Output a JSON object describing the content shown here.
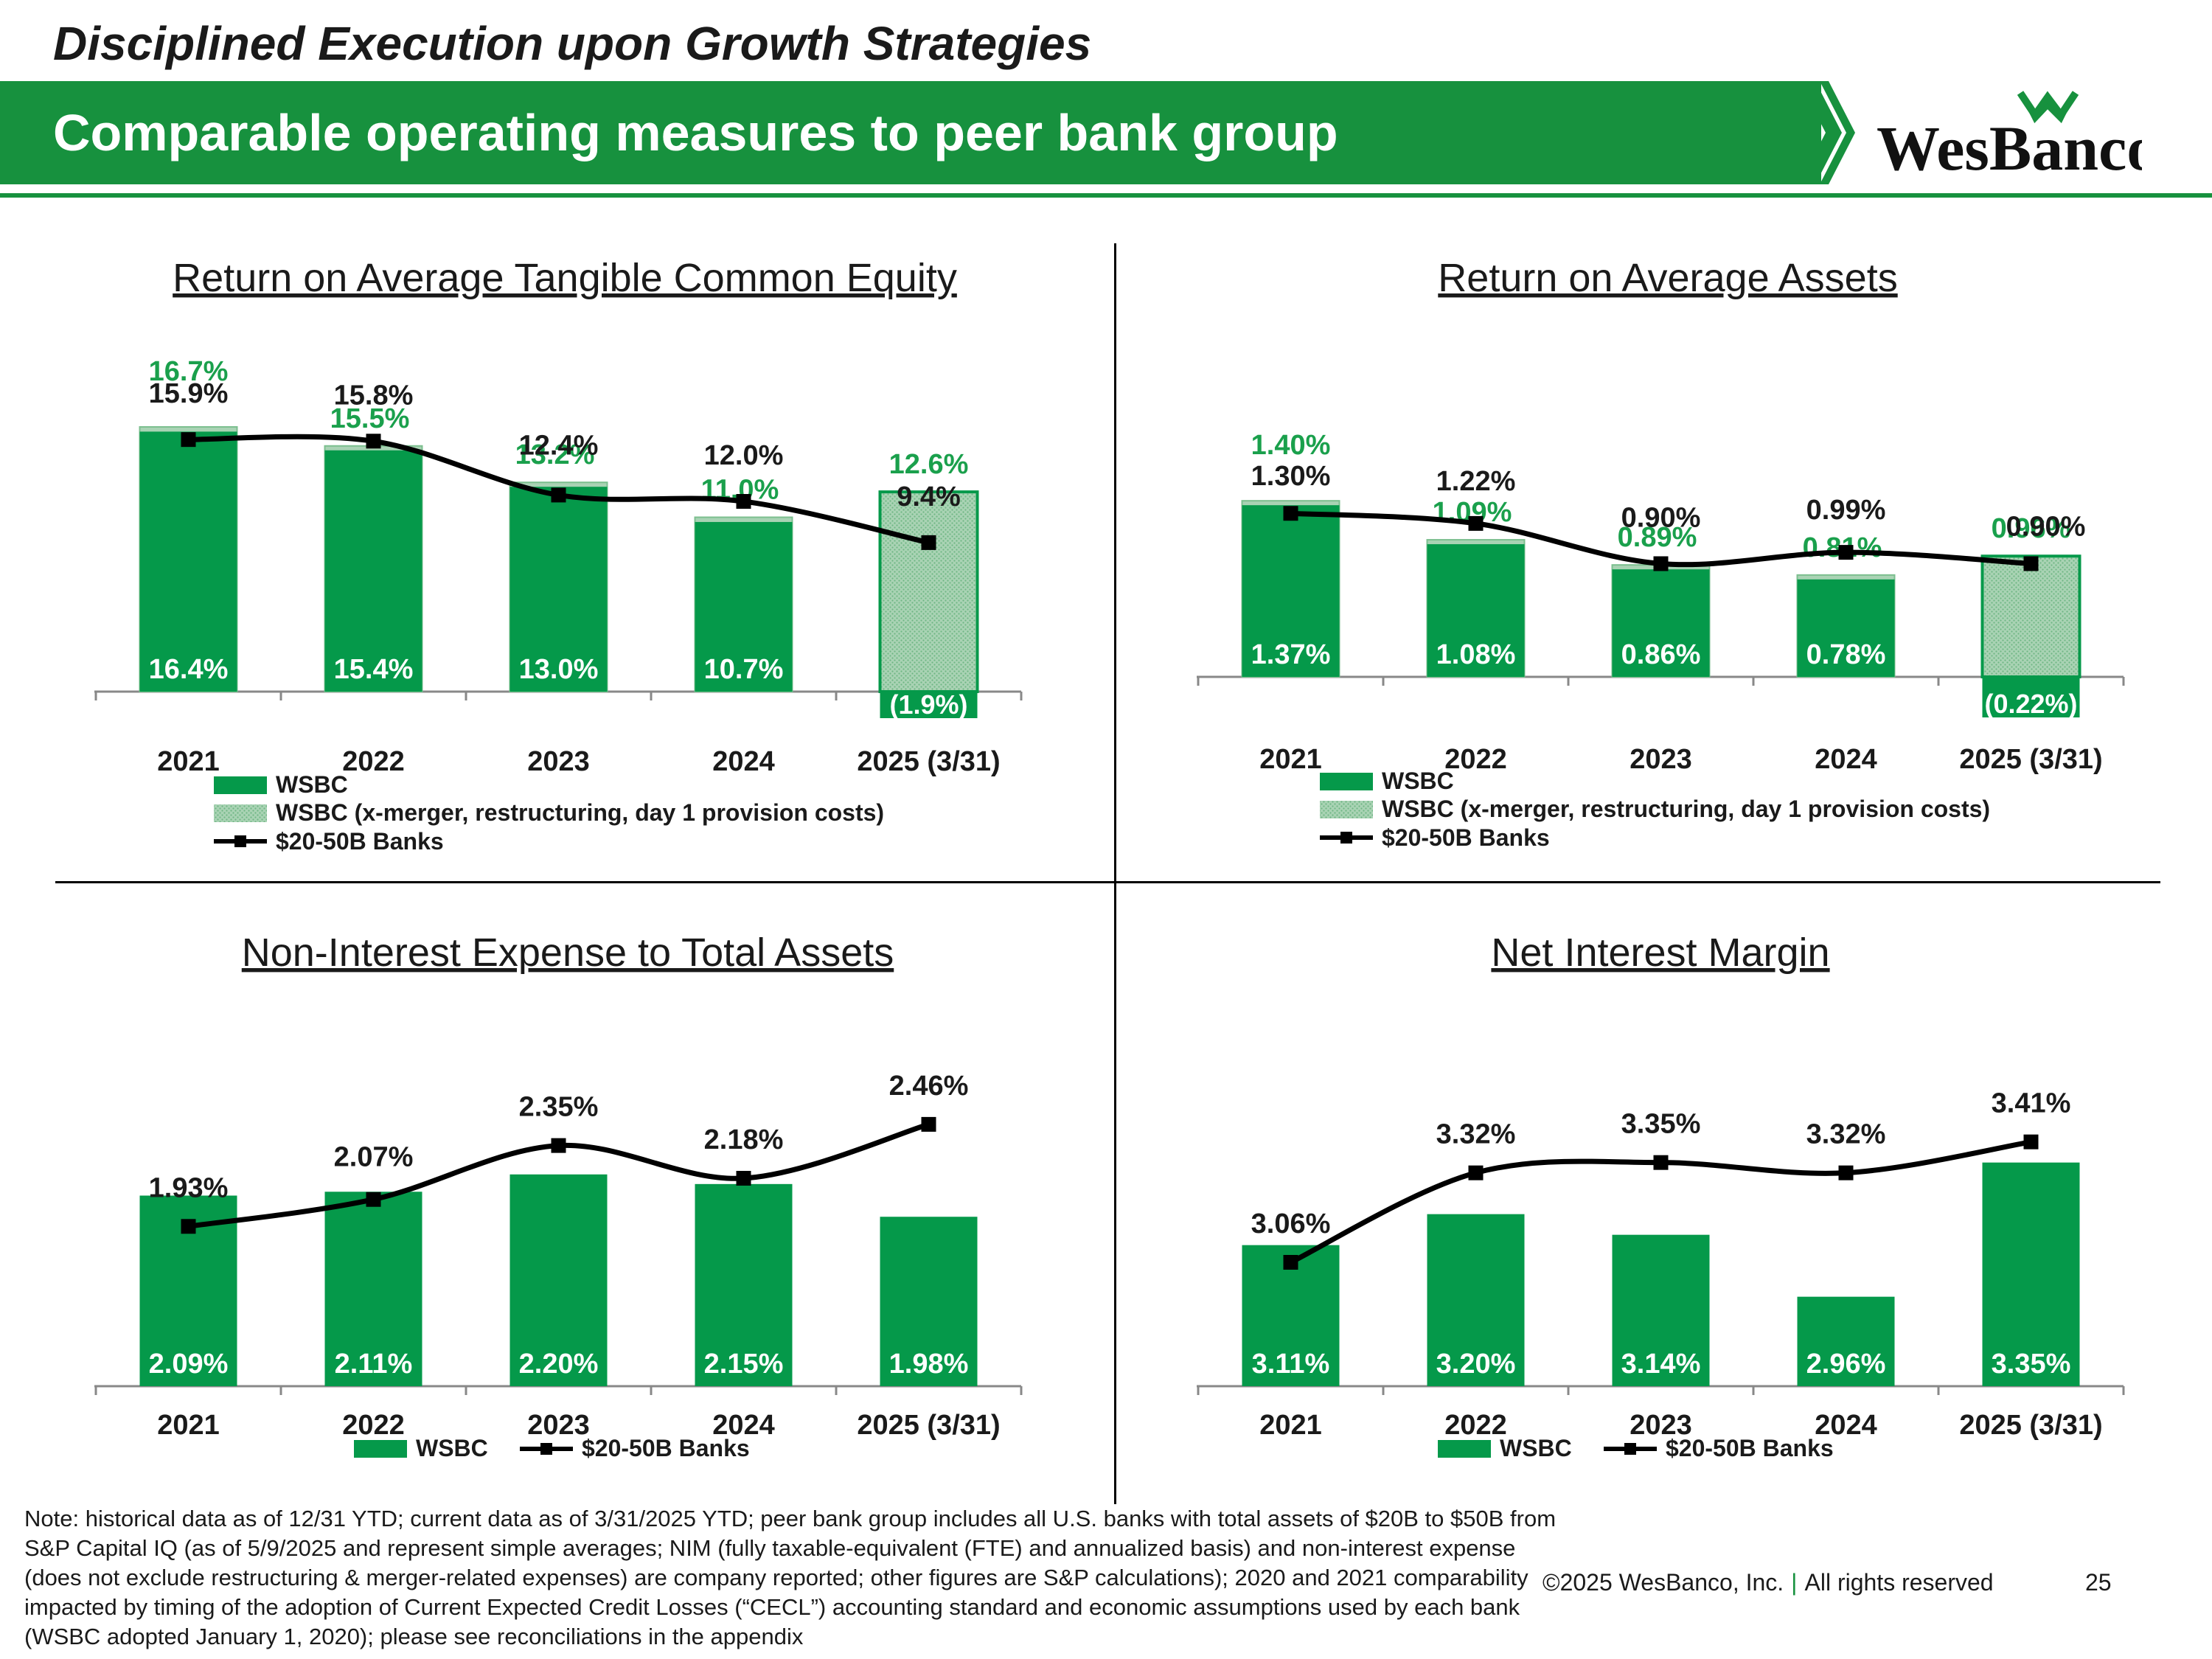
{
  "header": {
    "supertitle": "Disciplined Execution upon Growth Strategies",
    "title": "Comparable operating measures to peer bank group",
    "logo_text": "WesBanco"
  },
  "colors": {
    "green": "#17913e",
    "bar_green": "#05994a",
    "label_green": "#1aa04c",
    "line": "#000000"
  },
  "chart_data": [
    {
      "id": "rotce",
      "type": "bar",
      "title": "Return on Average Tangible Common Equity",
      "categories": [
        "2021",
        "2022",
        "2023",
        "2024",
        "2025 (3/31)"
      ],
      "series": [
        {
          "name": "WSBC",
          "kind": "bar",
          "values": [
            16.4,
            15.4,
            13.0,
            10.7,
            -1.9
          ],
          "labels": [
            "16.4%",
            "15.4%",
            "13.0%",
            "10.7%",
            "(1.9%)"
          ]
        },
        {
          "name": "WSBC (x-merger, restructuring, day 1 provision costs)",
          "kind": "bar-adjusted",
          "values": [
            16.7,
            15.5,
            13.2,
            11.0,
            12.6
          ],
          "labels": [
            "16.7%",
            "15.5%",
            "13.2%",
            "11.0%",
            "12.6%"
          ]
        },
        {
          "name": "$20-50B Banks",
          "kind": "line",
          "values": [
            15.9,
            15.8,
            12.4,
            12.0,
            9.4
          ],
          "labels": [
            "15.9%",
            "15.8%",
            "12.4%",
            "12.0%",
            "9.4%"
          ]
        }
      ],
      "ylim": [
        -2.5,
        20
      ]
    },
    {
      "id": "roaa",
      "type": "bar",
      "title": "Return on Average Assets",
      "categories": [
        "2021",
        "2022",
        "2023",
        "2024",
        "2025 (3/31)"
      ],
      "series": [
        {
          "name": "WSBC",
          "kind": "bar",
          "values": [
            1.37,
            1.08,
            0.86,
            0.78,
            -0.22
          ],
          "labels": [
            "1.37%",
            "1.08%",
            "0.86%",
            "0.78%",
            "(0.22%)"
          ]
        },
        {
          "name": "WSBC (x-merger, restructuring, day 1 provision costs)",
          "kind": "bar-adjusted",
          "values": [
            1.4,
            1.09,
            0.89,
            0.81,
            0.96
          ],
          "labels": [
            "1.40%",
            "1.09%",
            "0.89%",
            "0.81%",
            "0.96%"
          ]
        },
        {
          "name": "$20-50B Banks",
          "kind": "line",
          "values": [
            1.3,
            1.22,
            0.9,
            0.99,
            0.9
          ],
          "labels": [
            "1.30%",
            "1.22%",
            "0.90%",
            "0.99%",
            "0.90%"
          ]
        }
      ],
      "ylim": [
        -0.25,
        1.7
      ]
    },
    {
      "id": "nie",
      "type": "bar",
      "title": "Non-Interest Expense to Total Assets",
      "categories": [
        "2021",
        "2022",
        "2023",
        "2024",
        "2025 (3/31)"
      ],
      "series": [
        {
          "name": "WSBC",
          "kind": "bar",
          "values": [
            2.09,
            2.11,
            2.2,
            2.15,
            1.98
          ],
          "labels": [
            "2.09%",
            "2.11%",
            "2.20%",
            "2.15%",
            "1.98%"
          ]
        },
        {
          "name": "$20-50B Banks",
          "kind": "line",
          "values": [
            1.93,
            2.07,
            2.35,
            2.18,
            2.46
          ],
          "labels": [
            "1.93%",
            "2.07%",
            "2.35%",
            "2.18%",
            "2.46%"
          ]
        }
      ],
      "ylim": [
        1.1,
        2.9
      ]
    },
    {
      "id": "nim",
      "type": "bar",
      "title": "Net Interest Margin",
      "categories": [
        "2021",
        "2022",
        "2023",
        "2024",
        "2025 (3/31)"
      ],
      "series": [
        {
          "name": "WSBC",
          "kind": "bar",
          "values": [
            3.11,
            3.2,
            3.14,
            2.96,
            3.35
          ],
          "labels": [
            "3.11%",
            "3.20%",
            "3.14%",
            "2.96%",
            "3.35%"
          ]
        },
        {
          "name": "$20-50B Banks",
          "kind": "line",
          "values": [
            3.06,
            3.32,
            3.35,
            3.32,
            3.41
          ],
          "labels": [
            "3.06%",
            "3.32%",
            "3.35%",
            "3.32%",
            "3.41%"
          ]
        }
      ],
      "ylim": [
        2.7,
        3.6
      ]
    }
  ],
  "footer": {
    "note": "Note: historical data as of 12/31 YTD; current data as of 3/31/2025 YTD; peer bank group includes all U.S. banks with total assets of $20B to $50B from S&P Capital IQ (as of 5/9/2025 and represent simple averages; NIM (fully taxable-equivalent (FTE) and annualized basis) and non-interest expense (does not exclude restructuring & merger-related expenses) are company reported; other figures are S&P calculations); 2020 and 2021 comparability impacted by timing of the adoption of Current Expected Credit Losses (“CECL”) accounting standard and economic assumptions used by each bank (WSBC adopted January 1, 2020); please see reconciliations in the appendix",
    "copyright": "©2025 WesBanco, Inc.",
    "separator": "|",
    "rights": "All rights reserved",
    "page": "25"
  }
}
